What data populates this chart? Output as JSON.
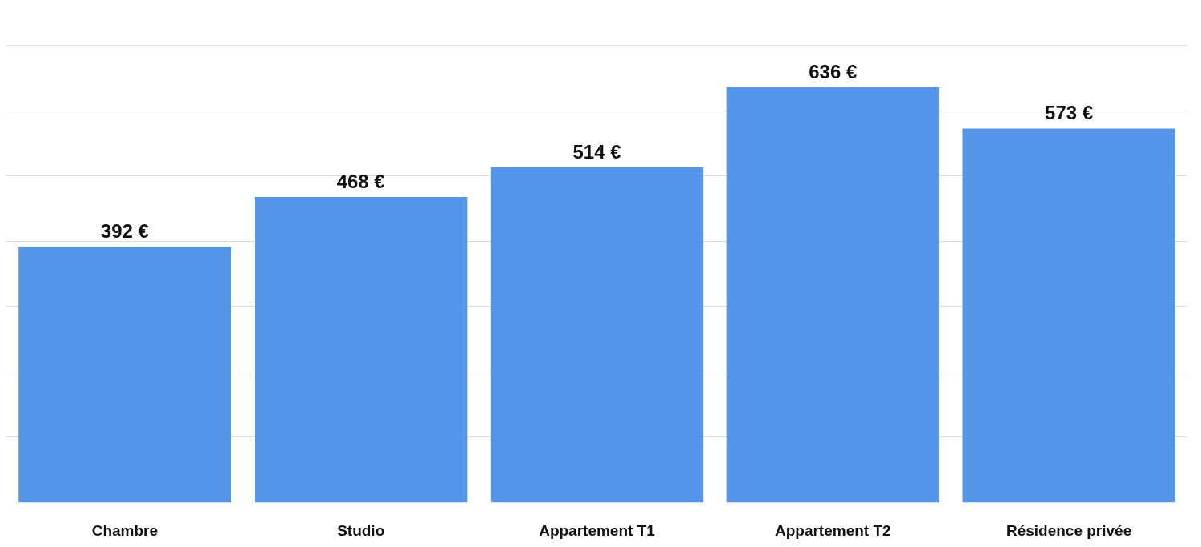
{
  "chart_data": {
    "type": "bar",
    "categories": [
      "Chambre",
      "Studio",
      "Appartement T1",
      "Appartement T2",
      "Résidence privée"
    ],
    "values": [
      392,
      468,
      514,
      636,
      573
    ],
    "value_labels": [
      "392 €",
      "468 €",
      "514 €",
      "636 €",
      "573 €"
    ],
    "color": "#5596ea",
    "yticks": [
      {
        "value": 100,
        "label": null
      },
      {
        "value": 200,
        "label": null
      },
      {
        "value": 300,
        "label": null
      },
      {
        "value": 400,
        "label": null
      },
      {
        "value": 500,
        "label": null
      },
      {
        "value": 600,
        "label": null
      },
      {
        "value": 700,
        "label": null
      }
    ],
    "grid": "y",
    "tick_labels": "x"
  }
}
